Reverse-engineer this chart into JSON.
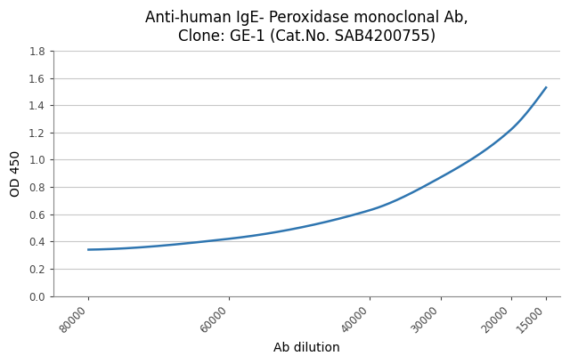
{
  "title_line1": "Anti-human IgE- Peroxidase monoclonal Ab,",
  "title_line2": "Clone: GE-1 (Cat.No. SAB4200755)",
  "xlabel": "Ab dilution",
  "ylabel": "OD 450",
  "x_values": [
    80000,
    60000,
    40000,
    30000,
    20000,
    15000
  ],
  "y_values": [
    0.34,
    0.42,
    0.63,
    0.87,
    1.22,
    1.53
  ],
  "xlim_left": 85000,
  "xlim_right": 13000,
  "ylim": [
    0.0,
    1.8
  ],
  "yticks": [
    0.0,
    0.2,
    0.4,
    0.6,
    0.8,
    1.0,
    1.2,
    1.4,
    1.6,
    1.8
  ],
  "xticks": [
    80000,
    60000,
    40000,
    30000,
    20000,
    15000
  ],
  "line_color": "#2E75B0",
  "background_color": "#ffffff",
  "grid_color": "#c8c8c8",
  "title_fontsize": 12,
  "axis_label_fontsize": 10,
  "tick_fontsize": 8.5
}
